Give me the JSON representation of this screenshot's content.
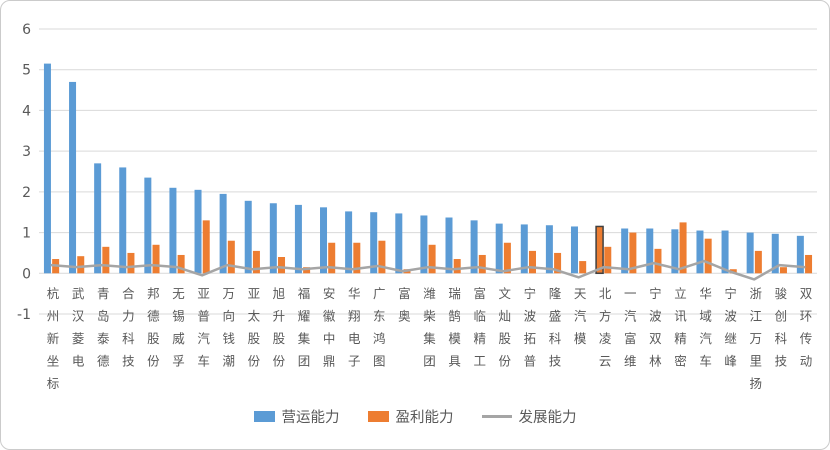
{
  "chart_data": {
    "type": "bar",
    "title": "",
    "xlabel": "",
    "ylabel": "",
    "categories": [
      "杭州新坐标",
      "武汉菱电",
      "青岛泰德",
      "合力科技",
      "邦德股份",
      "无锡威孚",
      "亚普汽车",
      "万向钱潮",
      "亚太股份",
      "旭升股份",
      "福耀集团",
      "安徽中鼎",
      "华翔电子",
      "广东鸿图",
      "富奥",
      "潍柴集团",
      "瑞鹄模具",
      "富临精工",
      "文灿股份",
      "宁波拓普",
      "隆盛科技",
      "天汽模",
      "北方凌云",
      "一汽富维",
      "宁波双林",
      "立讯精密",
      "华域汽车",
      "宁波继峰",
      "浙江万里扬",
      "骏创科技",
      "双环传动"
    ],
    "series": [
      {
        "key": "operating",
        "name": "营运能力",
        "color": "#5B9BD5",
        "values": [
          5.15,
          4.7,
          2.7,
          2.6,
          2.35,
          2.1,
          2.05,
          1.95,
          1.78,
          1.72,
          1.68,
          1.62,
          1.52,
          1.5,
          1.47,
          1.42,
          1.37,
          1.3,
          1.22,
          1.2,
          1.18,
          1.15,
          1.15,
          1.1,
          1.1,
          1.08,
          1.05,
          1.05,
          1.0,
          0.97,
          0.92
        ]
      },
      {
        "key": "profit",
        "name": "盈利能力",
        "color": "#ED7D31",
        "values": [
          0.35,
          0.42,
          0.65,
          0.5,
          0.7,
          0.45,
          1.3,
          0.8,
          0.55,
          0.4,
          0.15,
          0.75,
          0.75,
          0.8,
          0.1,
          0.7,
          0.35,
          0.45,
          0.75,
          0.55,
          0.5,
          0.3,
          0.65,
          1.0,
          0.6,
          1.25,
          0.85,
          0.1,
          0.55,
          0.15,
          0.45
        ]
      }
    ],
    "line_series": {
      "key": "development",
      "name": "发展能力",
      "color": "#A5A5A5",
      "values": [
        0.2,
        0.15,
        0.2,
        0.15,
        0.2,
        0.15,
        -0.05,
        0.2,
        0.1,
        0.15,
        0.1,
        0.15,
        0.1,
        0.18,
        0.05,
        0.15,
        0.1,
        0.15,
        0.05,
        0.15,
        0.1,
        -0.1,
        0.15,
        0.1,
        0.25,
        0.1,
        0.3,
        0.05,
        -0.15,
        0.2,
        0.15
      ]
    },
    "ylim": [
      -1,
      6
    ],
    "yticks": [
      6,
      5,
      4,
      3,
      2,
      1,
      0,
      -1
    ],
    "grid": true,
    "gridline_color": "#d9d9d9",
    "tick_label_color": "#595959",
    "legend_position": "bottom",
    "highlight": {
      "series_index": 0,
      "category_index": 22,
      "fill": "#ED7D31",
      "stroke": "#404040"
    }
  }
}
